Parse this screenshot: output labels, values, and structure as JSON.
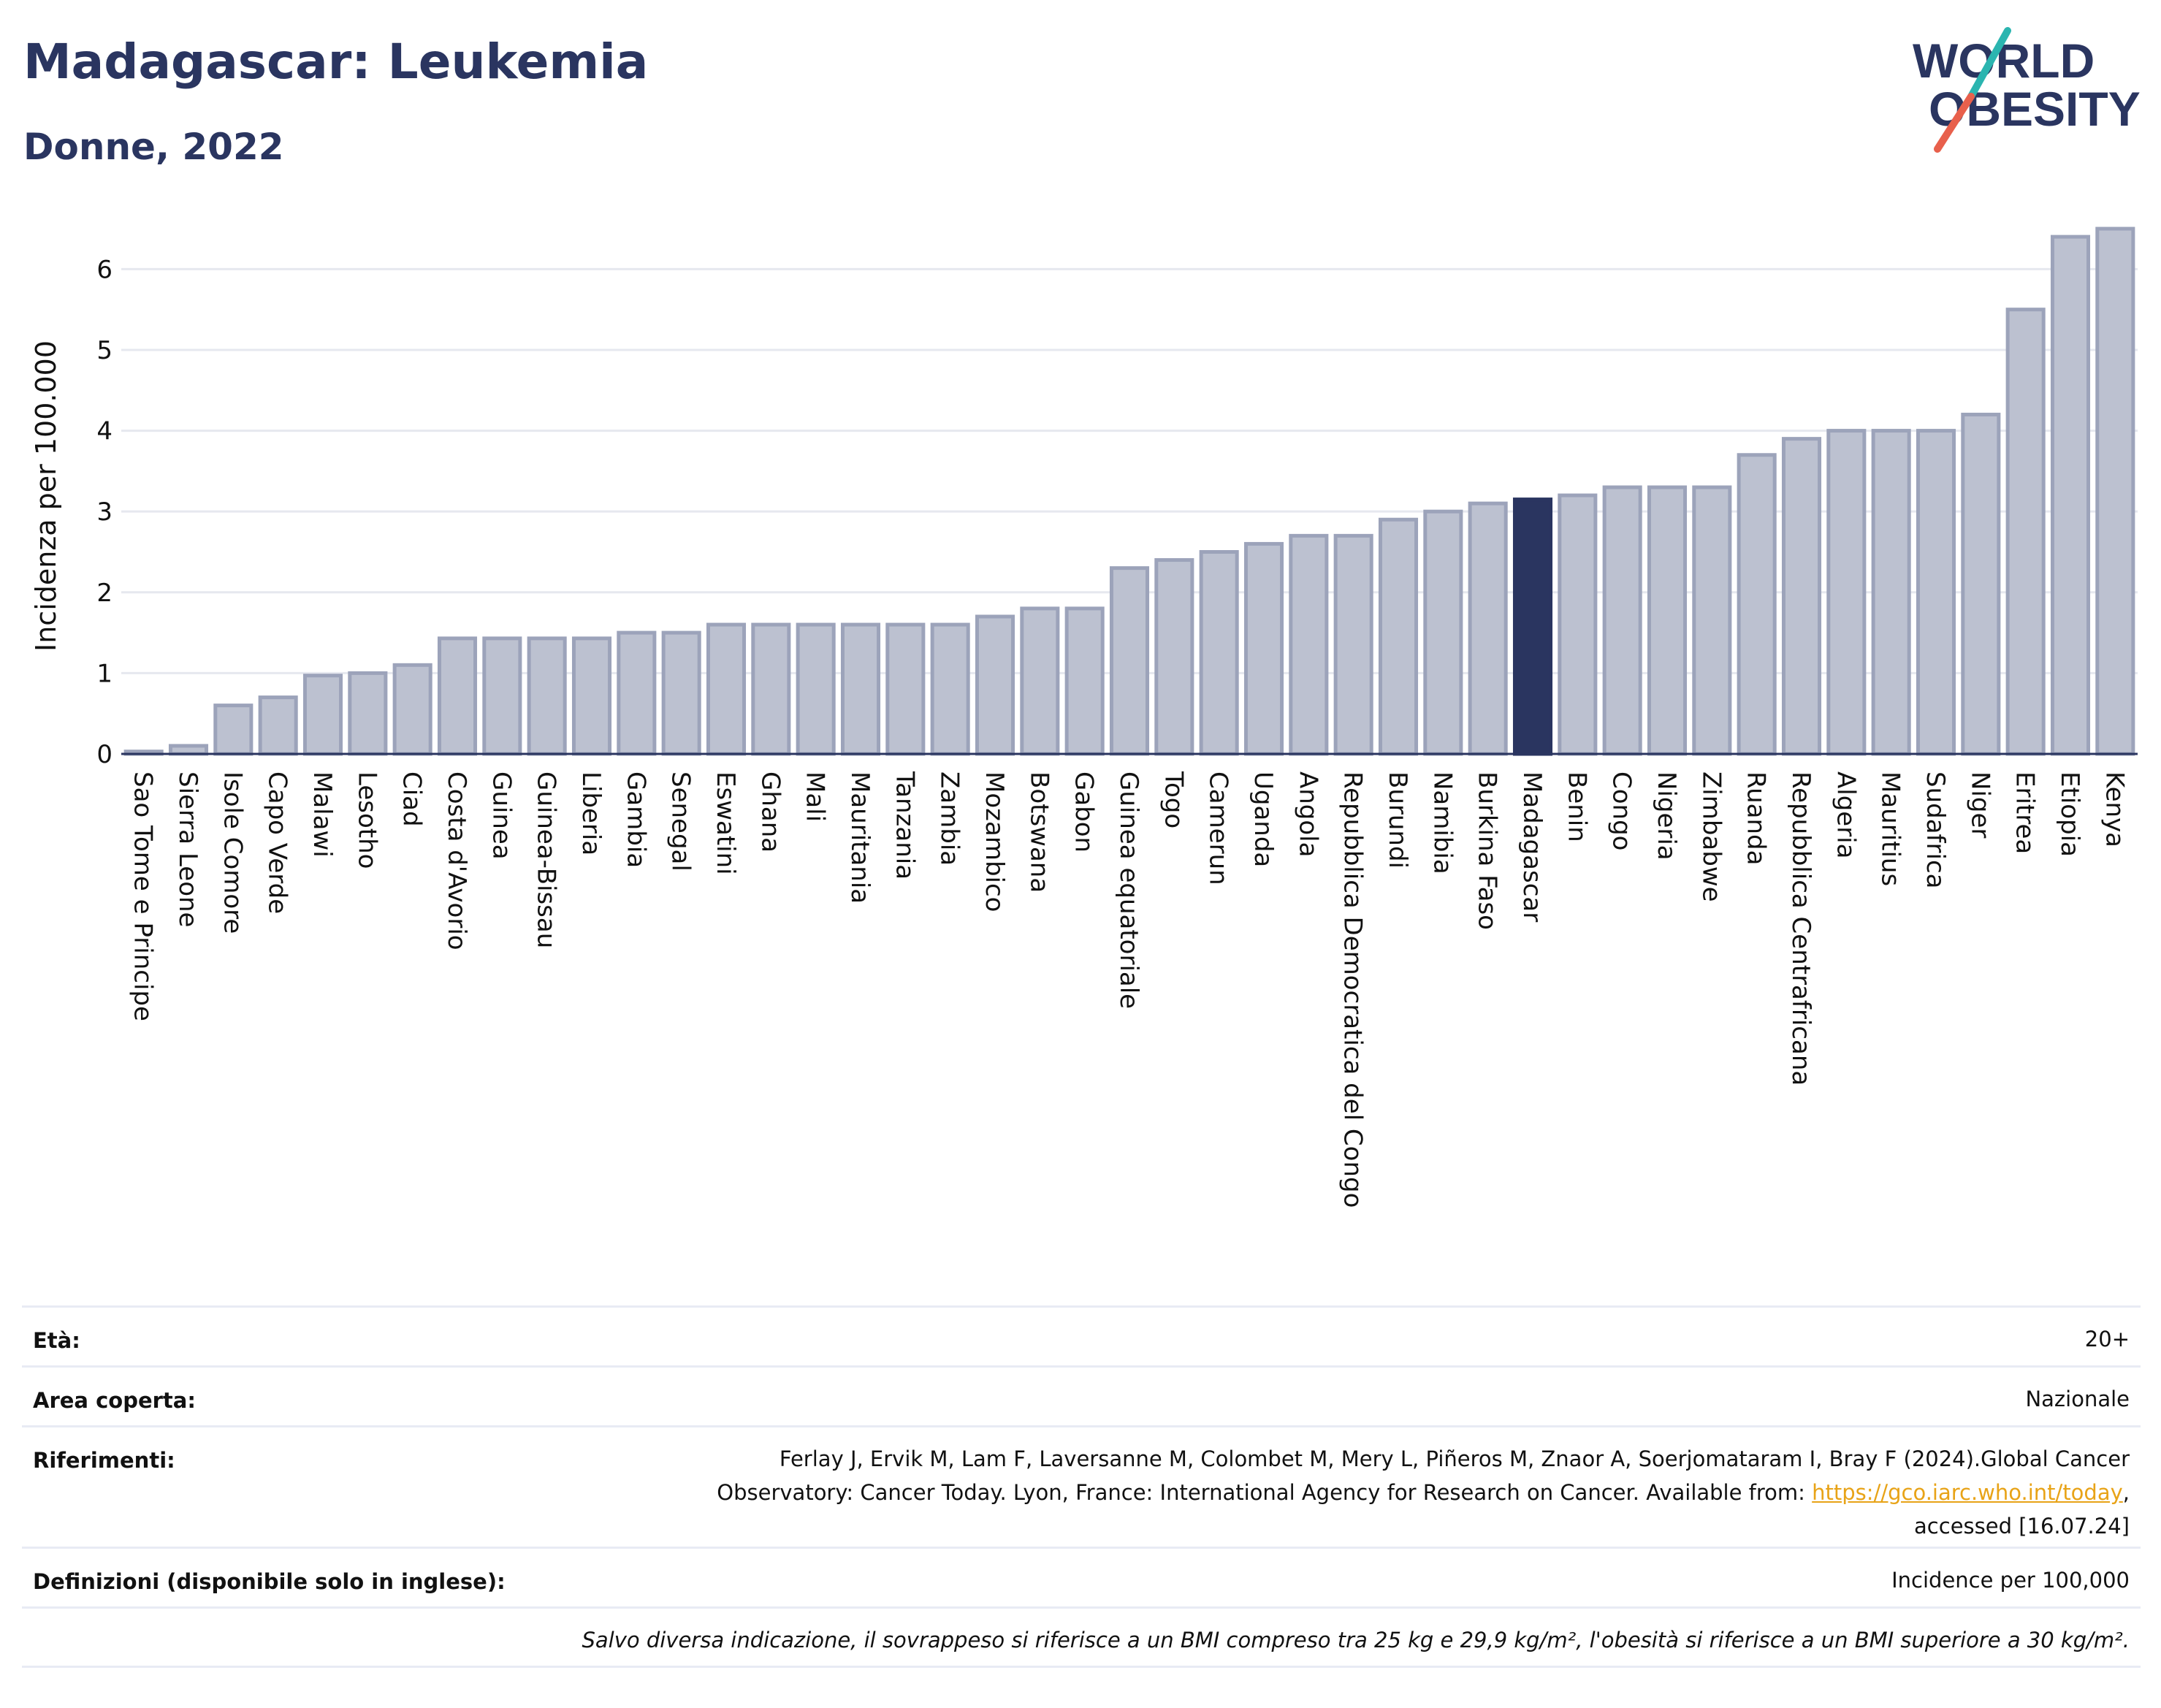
{
  "header": {
    "title": "Madagascar: Leukemia",
    "subtitle": "Donne, 2022"
  },
  "logo": {
    "line1": "WORLD",
    "line2": "OBESITY",
    "accent_teal": "#2bb5b0",
    "accent_red": "#e8604c"
  },
  "chart_data": {
    "type": "bar",
    "ylabel": "Incidenza per 100.000",
    "ylim": [
      0,
      6.6
    ],
    "yticks": [
      0,
      1,
      2,
      3,
      4,
      5,
      6
    ],
    "grid": true,
    "highlight": "Madagascar",
    "colors": {
      "bar": "#bcc1d0",
      "bar_border": "#9ca3ba",
      "highlight": "#2a3560"
    },
    "categories": [
      "Sao Tome e Principe",
      "Sierra Leone",
      "Isole Comore",
      "Capo Verde",
      "Malawi",
      "Lesotho",
      "Ciad",
      "Costa d'Avorio",
      "Guinea",
      "Guinea-Bissau",
      "Liberia",
      "Gambia",
      "Senegal",
      "Eswatini",
      "Ghana",
      "Mali",
      "Mauritania",
      "Tanzania",
      "Zambia",
      "Mozambico",
      "Botswana",
      "Gabon",
      "Guinea equatoriale",
      "Togo",
      "Camerun",
      "Uganda",
      "Angola",
      "Repubblica Democratica del Congo",
      "Burundi",
      "Namibia",
      "Burkina Faso",
      "Madagascar",
      "Benin",
      "Congo",
      "Nigeria",
      "Zimbabwe",
      "Ruanda",
      "Repubblica Centrafricana",
      "Algeria",
      "Mauritius",
      "Sudafrica",
      "Niger",
      "Eritrea",
      "Etiopia",
      "Kenya"
    ],
    "values": [
      0.03,
      0.1,
      0.6,
      0.7,
      0.97,
      1.0,
      1.1,
      1.43,
      1.43,
      1.43,
      1.43,
      1.5,
      1.5,
      1.6,
      1.6,
      1.6,
      1.6,
      1.6,
      1.6,
      1.7,
      1.8,
      1.8,
      2.3,
      2.4,
      2.5,
      2.6,
      2.7,
      2.7,
      2.9,
      3.0,
      3.1,
      3.15,
      3.2,
      3.3,
      3.3,
      3.3,
      3.7,
      3.9,
      4.0,
      4.0,
      4.0,
      4.2,
      5.5,
      6.4,
      6.5
    ]
  },
  "info": {
    "age_label": "Età:",
    "age_value": "20+",
    "area_label": "Area coperta:",
    "area_value": "Nazionale",
    "refs_label": "Riferimenti:",
    "refs_line1": "Ferlay J, Ervik M, Lam F, Laversanne M, Colombet M, Mery L, Piñeros M, Znaor A, Soerjomataram I, Bray F (2024).Global Cancer",
    "refs_line2_pre": "Observatory: Cancer Today. Lyon, France: International Agency for Research on Cancer. Available from: ",
    "refs_link": "https://gco.iarc.who.int/today",
    "refs_line2_post": ",",
    "refs_line3": "accessed [16.07.24]",
    "defs_label": "Definizioni (disponibile solo in inglese):",
    "defs_value": "Incidence per 100,000",
    "note": "Salvo diversa indicazione, il sovrappeso si riferisce a un BMI compreso tra 25 kg e 29,9 kg/m², l'obesità si riferisce a un BMI superiore a 30 kg/m²."
  }
}
